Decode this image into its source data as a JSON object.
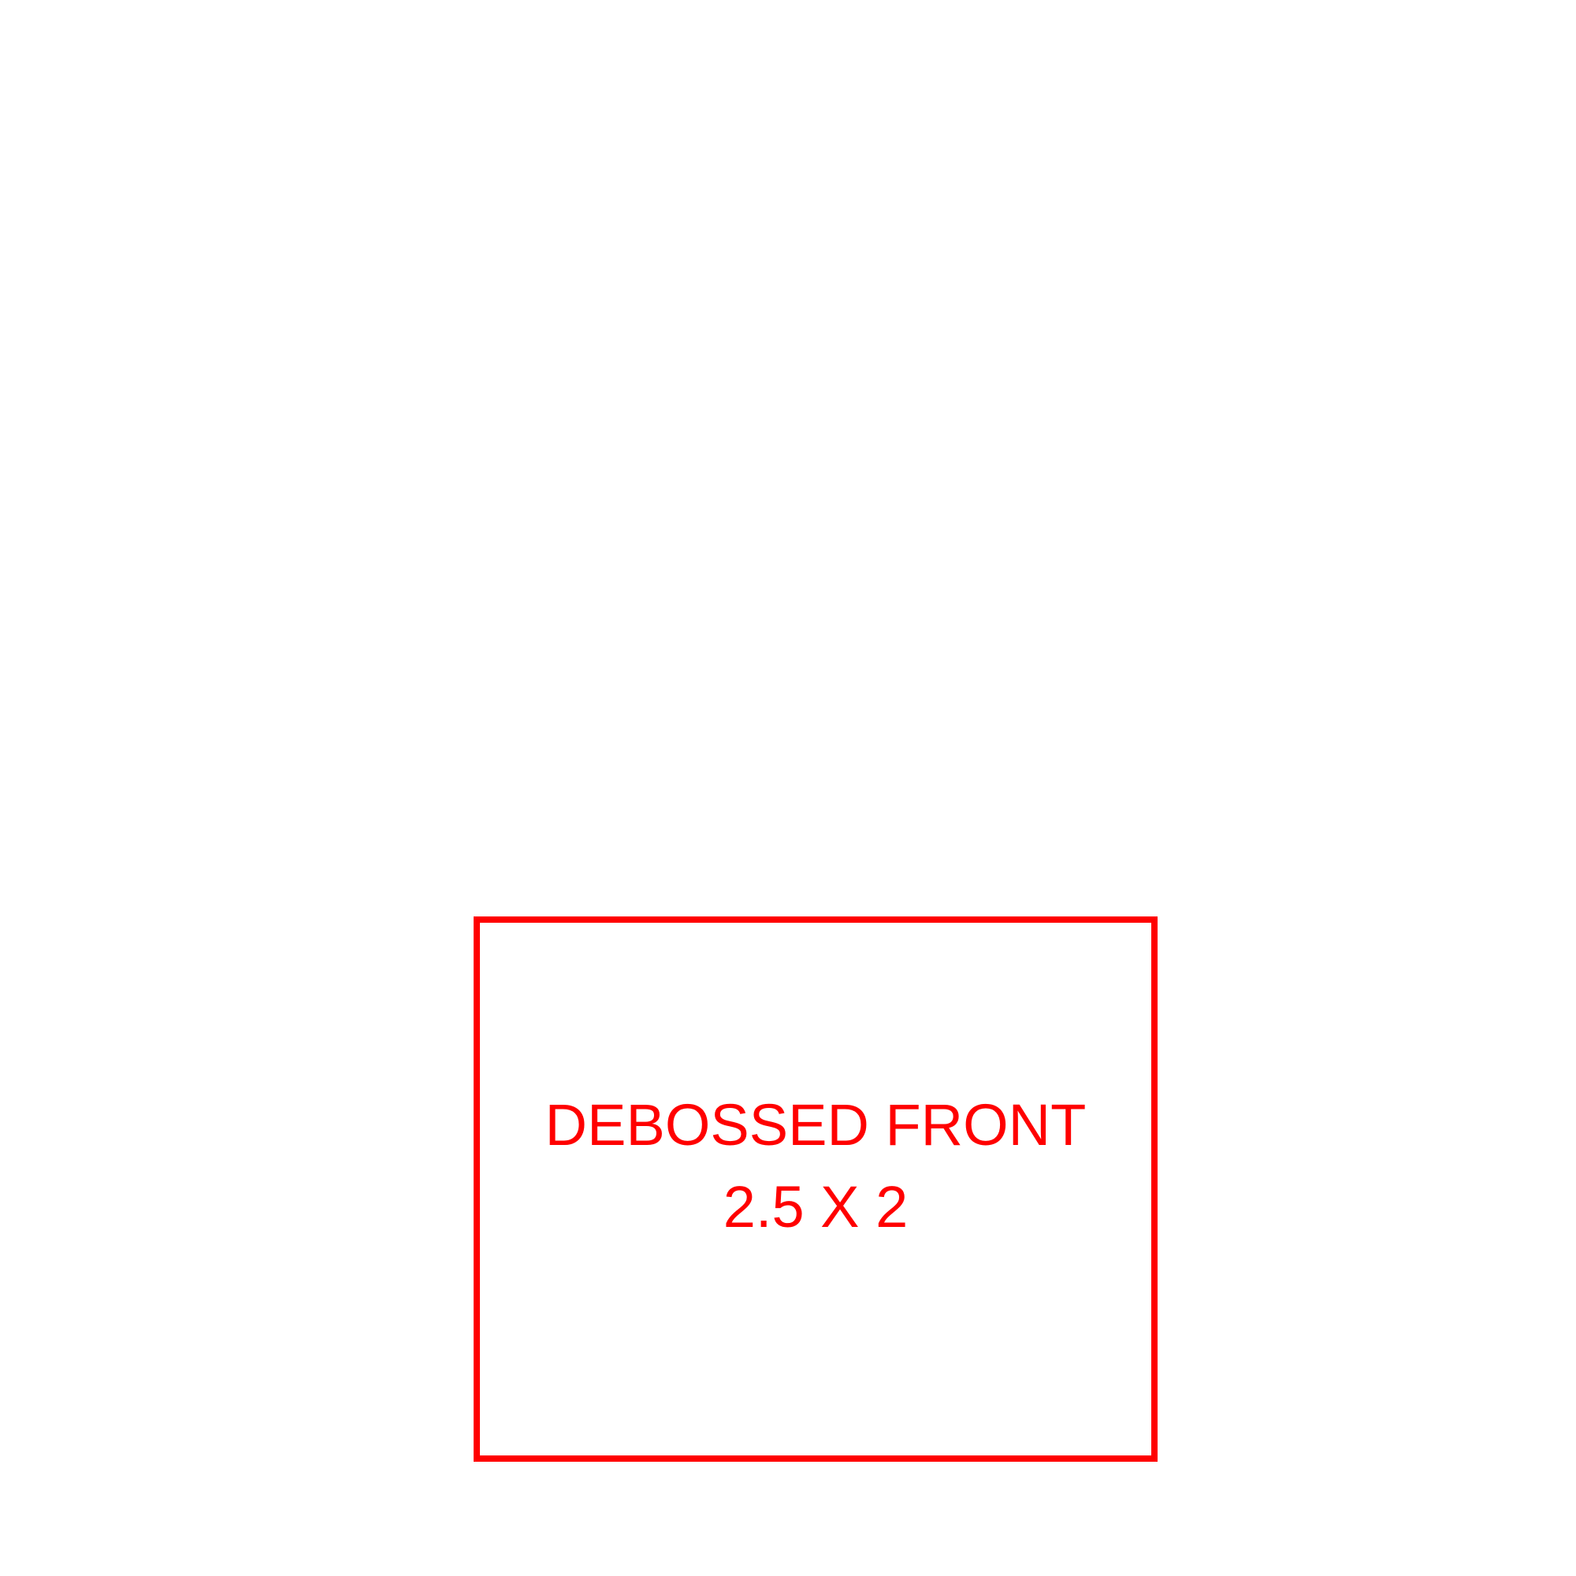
{
  "imprint": {
    "line1": "DEBOSSED FRONT",
    "line2": "2.5 X 2"
  },
  "colors": {
    "background": "#ffffff",
    "accent": "#ff0000"
  }
}
